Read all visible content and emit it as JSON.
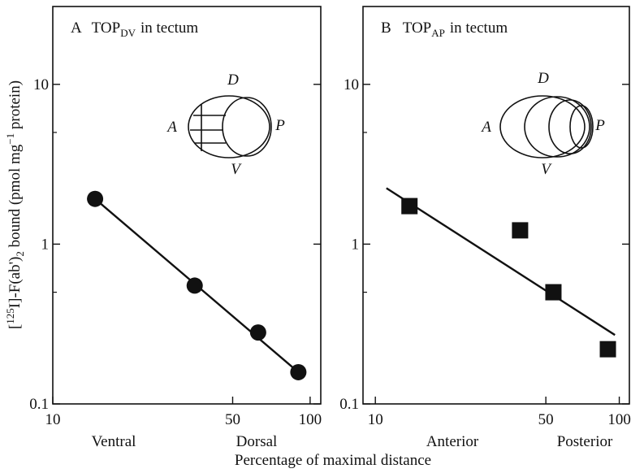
{
  "chart_data": [
    {
      "type": "scatter",
      "panel": "A",
      "title_main": "TOP",
      "title_sub": "DV",
      "title_suffix": "in tectum",
      "x": [
        14.6,
        35.6,
        62.8,
        90
      ],
      "values": [
        1.92,
        0.55,
        0.28,
        0.158
      ],
      "fit": {
        "x": [
          14.6,
          90
        ],
        "values": [
          1.92,
          0.158
        ]
      },
      "marker": "circle",
      "color": "#111",
      "log_x": true,
      "log_y": true,
      "xlim": [
        10,
        110
      ],
      "ylim": [
        0.1,
        30.7
      ],
      "xticks": [
        10,
        50,
        100
      ],
      "yticks": [
        0.1,
        1,
        10
      ],
      "yminor_ticks": [
        0.5,
        5
      ],
      "axis_end_labels": [
        "Ventral",
        "Dorsal"
      ],
      "diagram_labels": [
        "D",
        "A",
        "P",
        "V"
      ]
    },
    {
      "type": "scatter",
      "panel": "B",
      "title_main": "TOP",
      "title_sub": "AP",
      "title_suffix": "in tectum",
      "x": [
        13.8,
        39.2,
        53.7,
        89.8
      ],
      "values": [
        1.73,
        1.22,
        0.5,
        0.22
      ],
      "fit": {
        "x": [
          11.1,
          96
        ],
        "values": [
          2.24,
          0.27
        ]
      },
      "marker": "square",
      "color": "#111",
      "log_x": true,
      "log_y": true,
      "xlim": [
        8.9,
        110
      ],
      "ylim": [
        0.1,
        30.7
      ],
      "xticks": [
        10,
        50,
        100
      ],
      "yticks": [
        0.1,
        1,
        10
      ],
      "yminor_ticks": [
        0.5,
        5
      ],
      "axis_end_labels": [
        "Anterior",
        "Posterior"
      ],
      "diagram_labels": [
        "D",
        "A",
        "P",
        "V"
      ]
    }
  ],
  "x_label": "Percentage of maximal distance",
  "y_label_parts": [
    "[",
    "125",
    "I]-F(ab')",
    "2",
    " bound (pmol mg",
    "−1",
    " protein)"
  ]
}
